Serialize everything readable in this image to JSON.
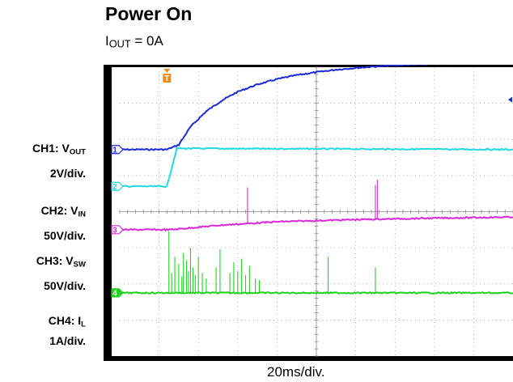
{
  "title": "Power On",
  "subtitle": {
    "prefix": "I",
    "sub": "OUT",
    "suffix": " = 0A"
  },
  "channels": [
    {
      "name": "CH1: V",
      "sub": "OUT",
      "scale": "2V/div.",
      "marker": "1",
      "color": "#1a2ad6"
    },
    {
      "name": "CH2: V",
      "sub": "IN",
      "scale": "50V/div.",
      "marker": "2",
      "color": "#22d8e2"
    },
    {
      "name": "CH3: V",
      "sub": "SW",
      "scale": "50V/div.",
      "marker": "3",
      "color": "#d92ad9"
    },
    {
      "name": "CH4: I",
      "sub": "L",
      "scale": "1A/div.",
      "marker": "4",
      "color": "#22d022"
    }
  ],
  "trigger_marker": "T",
  "chart_data": {
    "type": "line",
    "title": "Power On",
    "xlabel": "20ms/div.",
    "x_divisions": 10,
    "y_divisions": 8,
    "xlim_div": [
      0,
      10
    ],
    "ylim_div": [
      0,
      8
    ],
    "grid": true,
    "background": "#000000",
    "trigger_div": 1.2,
    "series": [
      {
        "name": "CH1: VOUT",
        "color": "#1a2ad6",
        "baseline_div": 5.72,
        "x_div": [
          0,
          1.2,
          1.5,
          1.8,
          2.2,
          2.6,
          3.0,
          3.5,
          4.0,
          4.5,
          5.0,
          5.5,
          6.0,
          6.5,
          7.0,
          7.5,
          8.0,
          8.5,
          9.0,
          9.5,
          10.0
        ],
        "y_div": [
          5.72,
          5.72,
          5.85,
          6.35,
          6.78,
          7.08,
          7.32,
          7.52,
          7.67,
          7.78,
          7.86,
          7.93,
          7.98,
          8.02,
          8.05,
          8.07,
          8.09,
          8.1,
          8.11,
          8.12,
          8.12
        ]
      },
      {
        "name": "CH2: VIN",
        "color": "#22d8e2",
        "baseline_div": 4.7,
        "x_div": [
          0,
          1.2,
          1.45,
          10.0
        ],
        "y_div": [
          4.7,
          4.7,
          5.75,
          5.72
        ]
      },
      {
        "name": "CH3: VSW",
        "color": "#d92ad9",
        "baseline_div": 3.5,
        "x_div": [
          0,
          1.3,
          2.5,
          4.0,
          6.0,
          8.0,
          10.0
        ],
        "y_div": [
          3.5,
          3.5,
          3.62,
          3.72,
          3.78,
          3.82,
          3.85
        ],
        "spikes": [
          {
            "x_div": 3.25,
            "height_div": 1.0
          },
          {
            "x_div": 6.5,
            "height_div": 0.95
          },
          {
            "x_div": 6.55,
            "height_div": 1.1
          }
        ]
      },
      {
        "name": "CH4: IL",
        "color": "#22d022",
        "baseline_div": 1.75,
        "spikes": [
          {
            "x_div": 1.25,
            "height_div": 1.7
          },
          {
            "x_div": 1.32,
            "height_div": 0.55
          },
          {
            "x_div": 1.4,
            "height_div": 1.0
          },
          {
            "x_div": 1.5,
            "height_div": 0.8
          },
          {
            "x_div": 1.58,
            "height_div": 0.45
          },
          {
            "x_div": 1.62,
            "height_div": 1.1
          },
          {
            "x_div": 1.7,
            "height_div": 0.9
          },
          {
            "x_div": 1.75,
            "height_div": 0.6
          },
          {
            "x_div": 1.8,
            "height_div": 1.25
          },
          {
            "x_div": 1.86,
            "height_div": 0.7
          },
          {
            "x_div": 1.92,
            "height_div": 0.5
          },
          {
            "x_div": 2.0,
            "height_div": 1.0
          },
          {
            "x_div": 2.1,
            "height_div": 0.55
          },
          {
            "x_div": 2.2,
            "height_div": 0.4
          },
          {
            "x_div": 2.45,
            "height_div": 0.7
          },
          {
            "x_div": 2.55,
            "height_div": 1.2
          },
          {
            "x_div": 2.8,
            "height_div": 0.55
          },
          {
            "x_div": 2.9,
            "height_div": 0.85
          },
          {
            "x_div": 3.0,
            "height_div": 0.6
          },
          {
            "x_div": 3.1,
            "height_div": 0.95
          },
          {
            "x_div": 3.2,
            "height_div": 0.5
          },
          {
            "x_div": 3.3,
            "height_div": 0.75
          },
          {
            "x_div": 3.45,
            "height_div": 0.4
          },
          {
            "x_div": 3.55,
            "height_div": 0.35
          },
          {
            "x_div": 5.3,
            "height_div": 1.0
          },
          {
            "x_div": 6.5,
            "height_div": 0.7
          }
        ]
      }
    ]
  }
}
